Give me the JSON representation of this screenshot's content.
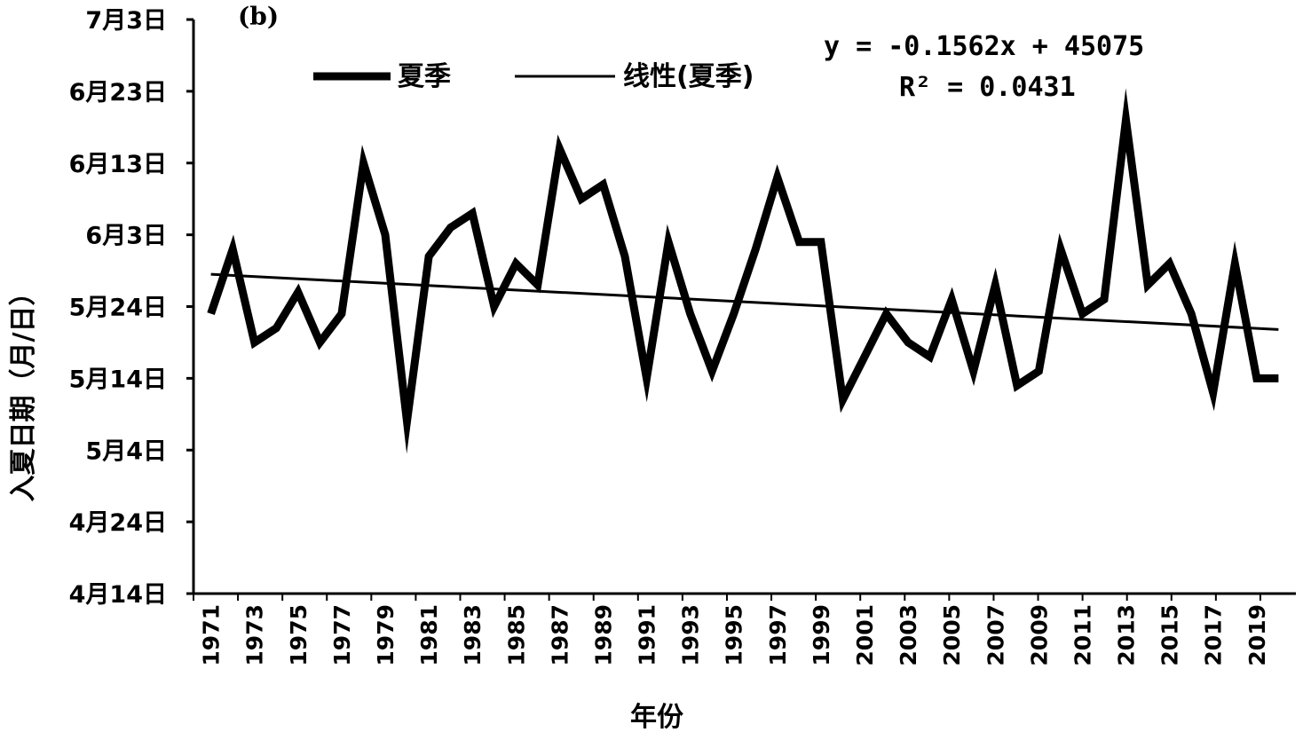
{
  "chart_data": {
    "type": "line",
    "panel_label": "(b)",
    "title": "",
    "xlabel": "年份",
    "ylabel": "入夏日期（月/日）",
    "x": [
      1971,
      1972,
      1973,
      1974,
      1975,
      1976,
      1977,
      1978,
      1979,
      1980,
      1981,
      1982,
      1983,
      1984,
      1985,
      1986,
      1987,
      1988,
      1989,
      1990,
      1991,
      1992,
      1993,
      1994,
      1995,
      1996,
      1997,
      1998,
      1999,
      2000,
      2001,
      2002,
      2003,
      2004,
      2005,
      2006,
      2007,
      2008,
      2009,
      2010,
      2011,
      2012,
      2013,
      2014,
      2015,
      2016,
      2017,
      2018,
      2019,
      2020
    ],
    "x_tick_labels": [
      "1971",
      "1973",
      "1975",
      "1977",
      "1979",
      "1981",
      "1983",
      "1985",
      "1987",
      "1989",
      "1991",
      "1993",
      "1995",
      "1997",
      "1999",
      "2001",
      "2003",
      "2005",
      "2007",
      "2009",
      "2011",
      "2013",
      "2015",
      "2017",
      "2019"
    ],
    "x_tick_years": [
      1971,
      1973,
      1975,
      1977,
      1979,
      1981,
      1983,
      1985,
      1987,
      1989,
      1991,
      1993,
      1995,
      1997,
      1999,
      2001,
      2003,
      2005,
      2007,
      2009,
      2011,
      2013,
      2015,
      2017,
      2019
    ],
    "y_ticks": [
      104,
      114,
      124,
      134,
      144,
      154,
      164,
      174,
      184
    ],
    "y_tick_labels": [
      "4月14日",
      "4月24日",
      "5月4日",
      "5月14日",
      "5月24日",
      "6月3日",
      "6月13日",
      "6月23日",
      "7月3日"
    ],
    "ylim": [
      104,
      184
    ],
    "y_unit": "day of year",
    "series": [
      {
        "name": "夏季",
        "style": "thick",
        "values": [
          143,
          152,
          139,
          141,
          146,
          139,
          143,
          164,
          154,
          128,
          151,
          155,
          157,
          144,
          150,
          147,
          166,
          159,
          161,
          151,
          134,
          153,
          143,
          135,
          143,
          152,
          162,
          153,
          153,
          131,
          137,
          143,
          139,
          137,
          145,
          135,
          147,
          133,
          135,
          152,
          143,
          145,
          170,
          147,
          150,
          143,
          132,
          150,
          134,
          134
        ]
      },
      {
        "name": "线性(夏季)",
        "style": "thin",
        "trend_slope": -0.1562,
        "trend_start": 148.5,
        "trend_end": 140.8
      }
    ],
    "trend_equation": "y = -0.1562x + 45075",
    "r_squared": "R² = 0.0431",
    "legend": [
      "夏季",
      "线性(夏季)"
    ],
    "legend_position": "top",
    "colors": {
      "line": "#000000",
      "background": "#ffffff"
    }
  }
}
